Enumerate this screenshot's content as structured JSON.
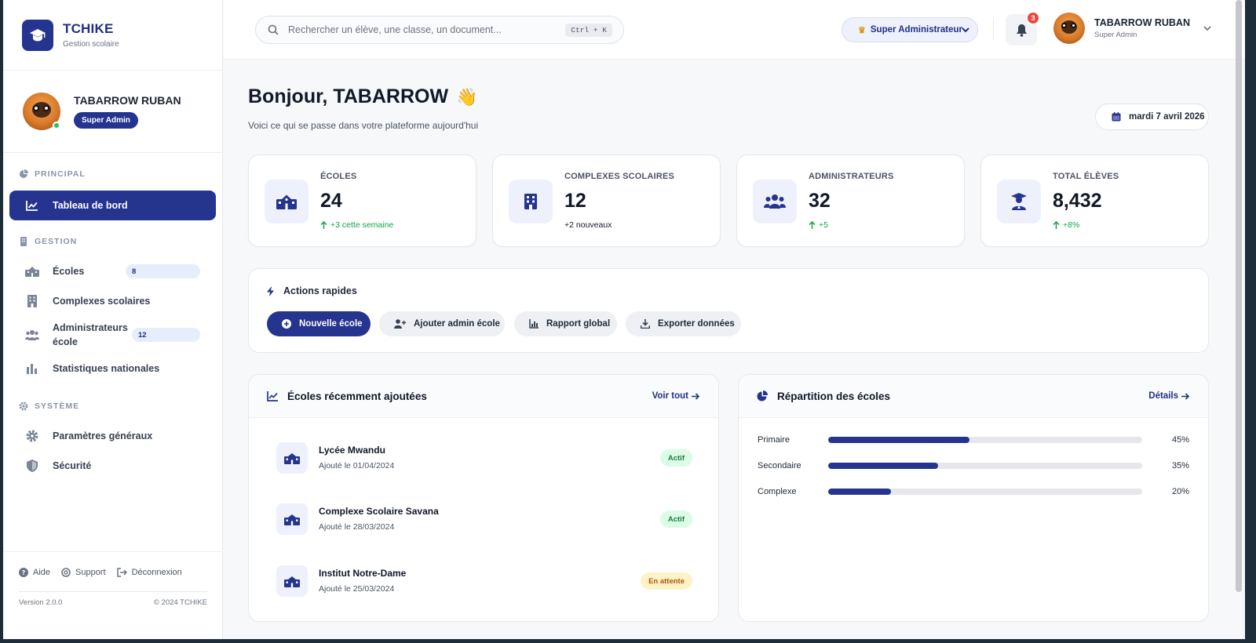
{
  "brand": {
    "name": "TCHIKE",
    "subtitle": "Gestion scolaire"
  },
  "sidebar": {
    "profile": {
      "name": "TABARROW RUBAN",
      "role": "Super Admin"
    },
    "sections": [
      {
        "title": "PRINCIPAL"
      },
      {
        "title": "GESTION"
      },
      {
        "title": "SYSTÈME"
      }
    ],
    "items": [
      {
        "label": "Tableau de bord",
        "icon": "chart-line-icon",
        "active": true
      },
      {
        "label": "Écoles",
        "icon": "school-icon",
        "badge": "8"
      },
      {
        "label": "Complexes scolaires",
        "icon": "building-icon"
      },
      {
        "label": "Administrateurs école",
        "icon": "users-icon",
        "badge": "12"
      },
      {
        "label": "Statistiques nationales",
        "icon": "bar-chart-icon"
      },
      {
        "label": "Paramètres généraux",
        "icon": "gear-icon"
      },
      {
        "label": "Sécurité",
        "icon": "shield-icon"
      }
    ],
    "footer": {
      "help": "Aide",
      "support": "Support",
      "logout": "Déconnexion",
      "version": "Version 2.0.0",
      "copyright": "© 2024 TCHIKE"
    }
  },
  "topbar": {
    "search_placeholder": "Rechercher un élève, une classe, un document...",
    "shortcut": "Ctrl + K",
    "role_select": "Super Administrateur",
    "notifications": "3",
    "user_name": "TABARROW RUBAN",
    "user_role": "Super Admin"
  },
  "main": {
    "greeting": "Bonjour, TABARROW",
    "wave": "👋",
    "subtitle": "Voici ce qui se passe dans votre plateforme aujourd'hui",
    "date": "mardi 7 avril 2026",
    "stats": [
      {
        "label": "ÉCOLES",
        "value": "24",
        "trend": "+3 cette semaine",
        "icon": "school-icon"
      },
      {
        "label": "COMPLEXES SCOLAIRES",
        "value": "12",
        "trend": "+2 nouveaux",
        "icon": "building-icon"
      },
      {
        "label": "ADMINISTRATEURS",
        "value": "32",
        "trend": "+5",
        "icon": "users-icon"
      },
      {
        "label": "TOTAL ÉLÈVES",
        "value": "8,432",
        "trend": "+8%",
        "icon": "graduate-icon"
      }
    ],
    "quick_actions": {
      "title": "Actions rapides",
      "buttons": [
        {
          "label": "Nouvelle école",
          "icon": "plus-circle-icon"
        },
        {
          "label": "Ajouter admin école",
          "icon": "user-plus-icon"
        },
        {
          "label": "Rapport global",
          "icon": "chart-icon"
        },
        {
          "label": "Exporter données",
          "icon": "download-icon"
        }
      ]
    },
    "recent_schools": {
      "title": "Écoles récemment ajoutées",
      "link": "Voir tout",
      "rows": [
        {
          "name": "Lycée Mwandu",
          "date": "Ajouté le 01/04/2024",
          "status": "Actif"
        },
        {
          "name": "Complexe Scolaire Savana",
          "date": "Ajouté le 28/03/2024",
          "status": "Actif"
        },
        {
          "name": "Institut Notre-Dame",
          "date": "Ajouté le 25/03/2024",
          "status": "En attente"
        }
      ]
    },
    "distribution": {
      "title": "Répartition des écoles",
      "link": "Détails",
      "rows": [
        {
          "label": "Primaire",
          "value": 45,
          "pct": "45%"
        },
        {
          "label": "Secondaire",
          "value": 35,
          "pct": "35%"
        },
        {
          "label": "Complexe",
          "value": 20,
          "pct": "20%"
        }
      ]
    }
  },
  "colors": {
    "primary": "#24348f",
    "success": "#16a34a",
    "warning": "#b45309",
    "danger": "#ef4444"
  }
}
